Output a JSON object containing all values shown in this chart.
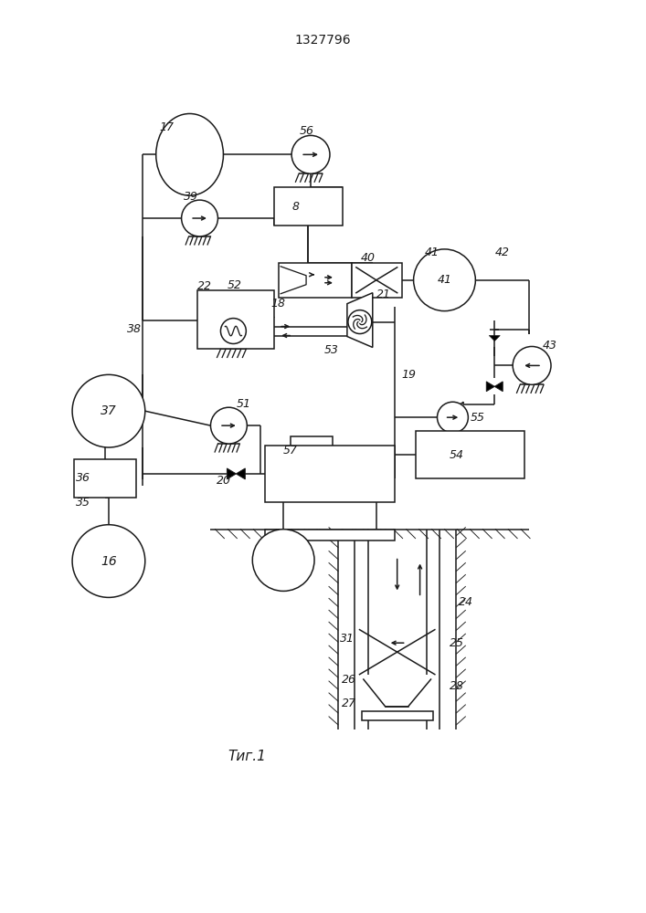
{
  "title": "1327796",
  "fig_label": "Τиг.1",
  "bg_color": "#ffffff",
  "line_color": "#1a1a1a",
  "figsize": [
    7.07,
    10.0
  ],
  "dpi": 100
}
